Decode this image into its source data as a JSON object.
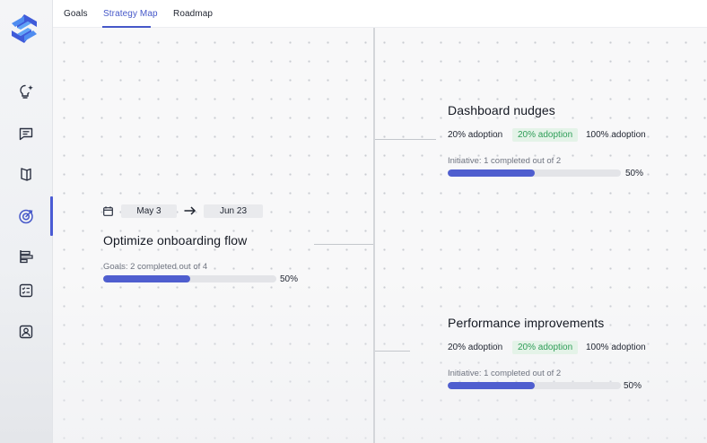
{
  "tabs": [
    {
      "label": "Goals"
    },
    {
      "label": "Strategy Map",
      "active": true
    },
    {
      "label": "Roadmap"
    }
  ],
  "sidebar": {
    "icons": [
      "logo-icon",
      "lightbulb-icon",
      "chat-icon",
      "book-icon",
      "target-icon",
      "align-icon",
      "checklist-icon",
      "contact-icon"
    ],
    "active": "target-icon"
  },
  "goal": {
    "start_date": "May 3",
    "end_date": "Jun 23",
    "title": "Optimize onboarding flow",
    "progress_label": "Goals: 2 completed out of 4",
    "progress_fraction": 0.5,
    "progress_pct": "50%"
  },
  "initiatives": [
    {
      "title": "Dashboard nudges",
      "adoption": [
        "20% adoption",
        "20% adoption",
        "100% adoption"
      ],
      "progress_label": "Initiative: 1 completed out of 2",
      "progress_fraction": 0.5,
      "progress_pct": "50%"
    },
    {
      "title": "Performance improvements",
      "adoption": [
        "20% adoption",
        "20% adoption",
        "100% adoption"
      ],
      "progress_label": "Initiative: 1 completed out of 2",
      "progress_fraction": 0.5,
      "progress_pct": "50%"
    }
  ],
  "colors": {
    "accent": "#4658c9",
    "progress_fill": "#4f5ecf",
    "adoption_highlight_text": "#2e9d57",
    "adoption_highlight_bg": "#e4f3e8"
  }
}
